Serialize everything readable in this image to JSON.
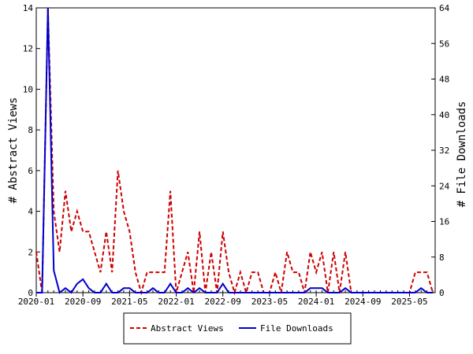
{
  "chart_data": {
    "type": "line",
    "title": "",
    "xlabel": "",
    "ylabel": "# Abstract Views",
    "y2label": "# File Downloads",
    "ylim": [
      0,
      14
    ],
    "y2lim": [
      0,
      64
    ],
    "yticks": [
      0,
      2,
      4,
      6,
      8,
      10,
      12,
      14
    ],
    "y2ticks": [
      0,
      8,
      16,
      24,
      32,
      40,
      48,
      56,
      64
    ],
    "x_unit": "month index since 2020-01",
    "xlim": [
      0,
      68.4
    ],
    "xticks": [
      {
        "label": "2020-01",
        "month": 0
      },
      {
        "label": "2020-09",
        "month": 8
      },
      {
        "label": "2021-05",
        "month": 16
      },
      {
        "label": "2022-01",
        "month": 24
      },
      {
        "label": "2022-09",
        "month": 32
      },
      {
        "label": "2023-05",
        "month": 40
      },
      {
        "label": "2024-01",
        "month": 48
      },
      {
        "label": "2024-09",
        "month": 56
      },
      {
        "label": "2025-05",
        "month": 64
      }
    ],
    "grid": false,
    "legend_position": "bottom-center",
    "series": [
      {
        "name": "Abstract Views",
        "axis": "left",
        "color": "#cc0000",
        "style": "dashed",
        "values": [
          2,
          0,
          14,
          4,
          2,
          5,
          3,
          4,
          3,
          3,
          2,
          1,
          3,
          1,
          6,
          4,
          3,
          1,
          0,
          1,
          1,
          1,
          1,
          5,
          0,
          1,
          2,
          0,
          3,
          0,
          2,
          0,
          3,
          1,
          0,
          1,
          0,
          1,
          1,
          0,
          0,
          1,
          0,
          2,
          1,
          1,
          0,
          2,
          1,
          2,
          0,
          2,
          0,
          2,
          0,
          0,
          0,
          0,
          0,
          0,
          0,
          0,
          0,
          0,
          0,
          1,
          1,
          1,
          0
        ]
      },
      {
        "name": "File Downloads",
        "axis": "right",
        "color": "#0000cc",
        "style": "solid",
        "values": [
          0,
          0,
          64,
          5,
          0,
          1,
          0,
          2,
          3,
          1,
          0,
          0,
          2,
          0,
          0,
          1,
          1,
          0,
          0,
          0,
          1,
          0,
          0,
          2,
          0,
          0,
          1,
          0,
          1,
          0,
          0,
          0,
          2,
          0,
          0,
          0,
          0,
          0,
          0,
          0,
          0,
          0,
          0,
          0,
          0,
          0,
          0,
          1,
          1,
          1,
          0,
          0,
          0,
          1,
          0,
          0,
          0,
          0,
          0,
          0,
          0,
          0,
          0,
          0,
          0,
          0,
          1,
          0,
          0
        ]
      }
    ]
  }
}
